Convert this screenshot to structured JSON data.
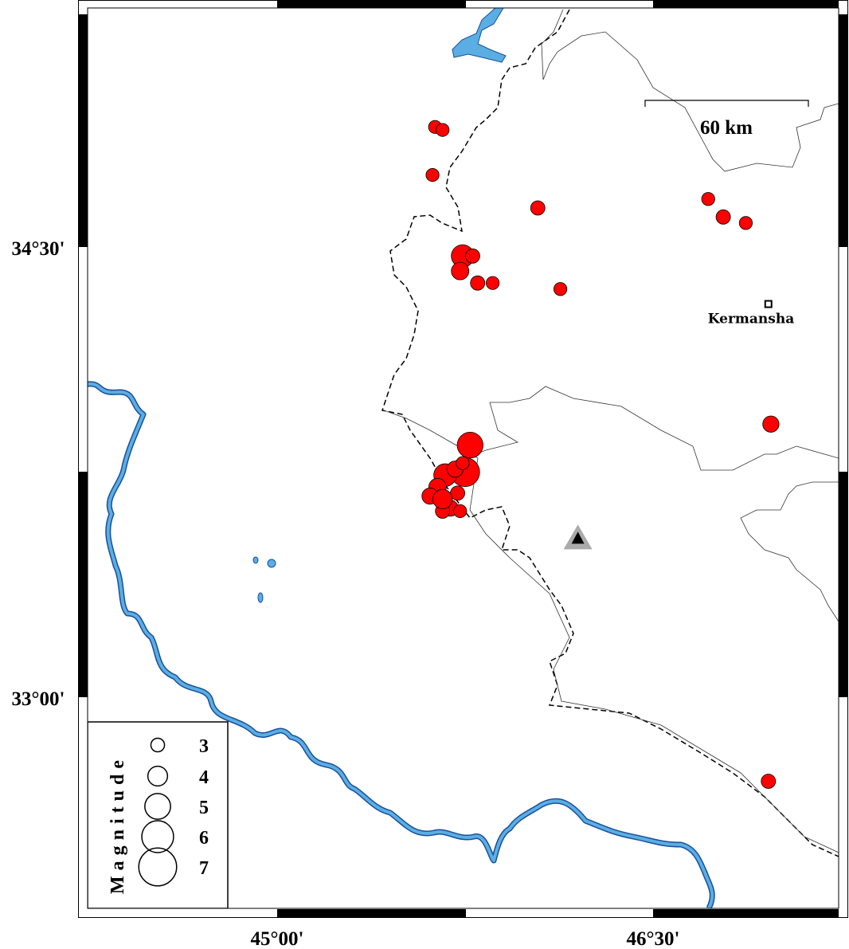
{
  "map": {
    "projection_ticks": {
      "lon": [
        {
          "value": 45.0,
          "label": "45°00'"
        },
        {
          "value": 46.5,
          "label": "46°30'"
        }
      ],
      "lat": [
        {
          "value": 34.5,
          "label": "34°30'"
        },
        {
          "value": 33.0,
          "label": "33°00'"
        }
      ]
    },
    "extent": {
      "lon": [
        44.24,
        47.24
      ],
      "lat": [
        32.3,
        35.3
      ]
    },
    "colors": {
      "event": "#ff0000",
      "water": "#5aaee3",
      "water_outline": "#1a4f9a",
      "station_outer": "#aaaaaa",
      "station_inner": "#000000"
    },
    "scale_bar": {
      "label": "60 km"
    },
    "city": {
      "name": "Kermansha",
      "lon": 46.96,
      "lat": 34.31
    },
    "station": {
      "icon": "triangle-icon",
      "lon": 46.2,
      "lat": 33.53
    },
    "legend": {
      "title": "Magnitude",
      "items": [
        {
          "label": "3",
          "mag": 3
        },
        {
          "label": "4",
          "mag": 4
        },
        {
          "label": "5",
          "mag": 5
        },
        {
          "label": "6",
          "mag": 6
        },
        {
          "label": "7",
          "mag": 7
        }
      ]
    },
    "events": [
      {
        "lon": 45.63,
        "lat": 34.9,
        "mag": 2.8
      },
      {
        "lon": 45.66,
        "lat": 34.89,
        "mag": 2.8
      },
      {
        "lon": 45.62,
        "lat": 34.74,
        "mag": 2.8
      },
      {
        "lon": 46.04,
        "lat": 34.63,
        "mag": 3.0
      },
      {
        "lon": 46.72,
        "lat": 34.66,
        "mag": 2.8
      },
      {
        "lon": 46.78,
        "lat": 34.6,
        "mag": 3.0
      },
      {
        "lon": 46.87,
        "lat": 34.58,
        "mag": 2.8
      },
      {
        "lon": 45.74,
        "lat": 34.47,
        "mag": 4.3
      },
      {
        "lon": 45.78,
        "lat": 34.47,
        "mag": 3.0
      },
      {
        "lon": 45.73,
        "lat": 34.42,
        "mag": 3.5
      },
      {
        "lon": 45.8,
        "lat": 34.38,
        "mag": 3.0
      },
      {
        "lon": 45.86,
        "lat": 34.38,
        "mag": 2.8
      },
      {
        "lon": 46.13,
        "lat": 34.36,
        "mag": 2.8
      },
      {
        "lon": 46.97,
        "lat": 33.91,
        "mag": 3.3
      },
      {
        "lon": 45.77,
        "lat": 33.84,
        "mag": 4.8
      },
      {
        "lon": 46.96,
        "lat": 32.72,
        "mag": 3.0
      },
      {
        "lon": 45.75,
        "lat": 33.75,
        "mag": 5.3
      },
      {
        "lon": 45.67,
        "lat": 33.74,
        "mag": 4.3
      },
      {
        "lon": 45.71,
        "lat": 33.76,
        "mag": 3.3
      },
      {
        "lon": 45.74,
        "lat": 33.78,
        "mag": 2.8
      },
      {
        "lon": 45.64,
        "lat": 33.7,
        "mag": 3.5
      },
      {
        "lon": 45.61,
        "lat": 33.67,
        "mag": 3.3
      },
      {
        "lon": 45.72,
        "lat": 33.68,
        "mag": 3.0
      },
      {
        "lon": 45.69,
        "lat": 33.63,
        "mag": 3.3
      },
      {
        "lon": 45.66,
        "lat": 33.62,
        "mag": 3.0
      },
      {
        "lon": 45.73,
        "lat": 33.62,
        "mag": 2.8
      },
      {
        "lon": 45.66,
        "lat": 33.66,
        "mag": 3.8
      }
    ]
  }
}
